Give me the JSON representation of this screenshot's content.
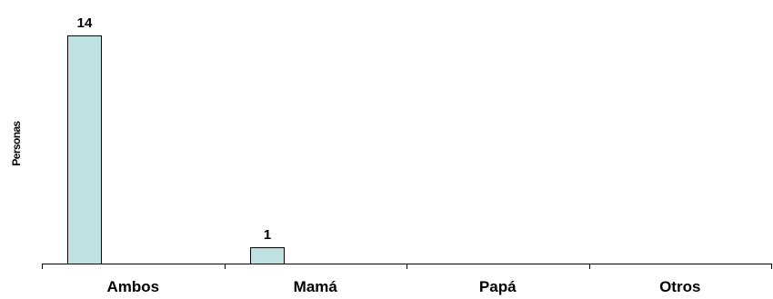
{
  "chart_data": {
    "type": "bar",
    "title": "",
    "xlabel": "",
    "ylabel": "Personas",
    "categories": [
      "Ambos",
      "Mamá",
      "Papá",
      "Otros"
    ],
    "values": [
      14,
      1,
      0,
      0
    ],
    "data_labels": [
      "14",
      "1",
      "",
      ""
    ],
    "ylim": [
      0,
      15
    ],
    "grid": false,
    "legend": "none",
    "bar_color": "#bfe1e1",
    "bar_edge_color": "#000000"
  }
}
